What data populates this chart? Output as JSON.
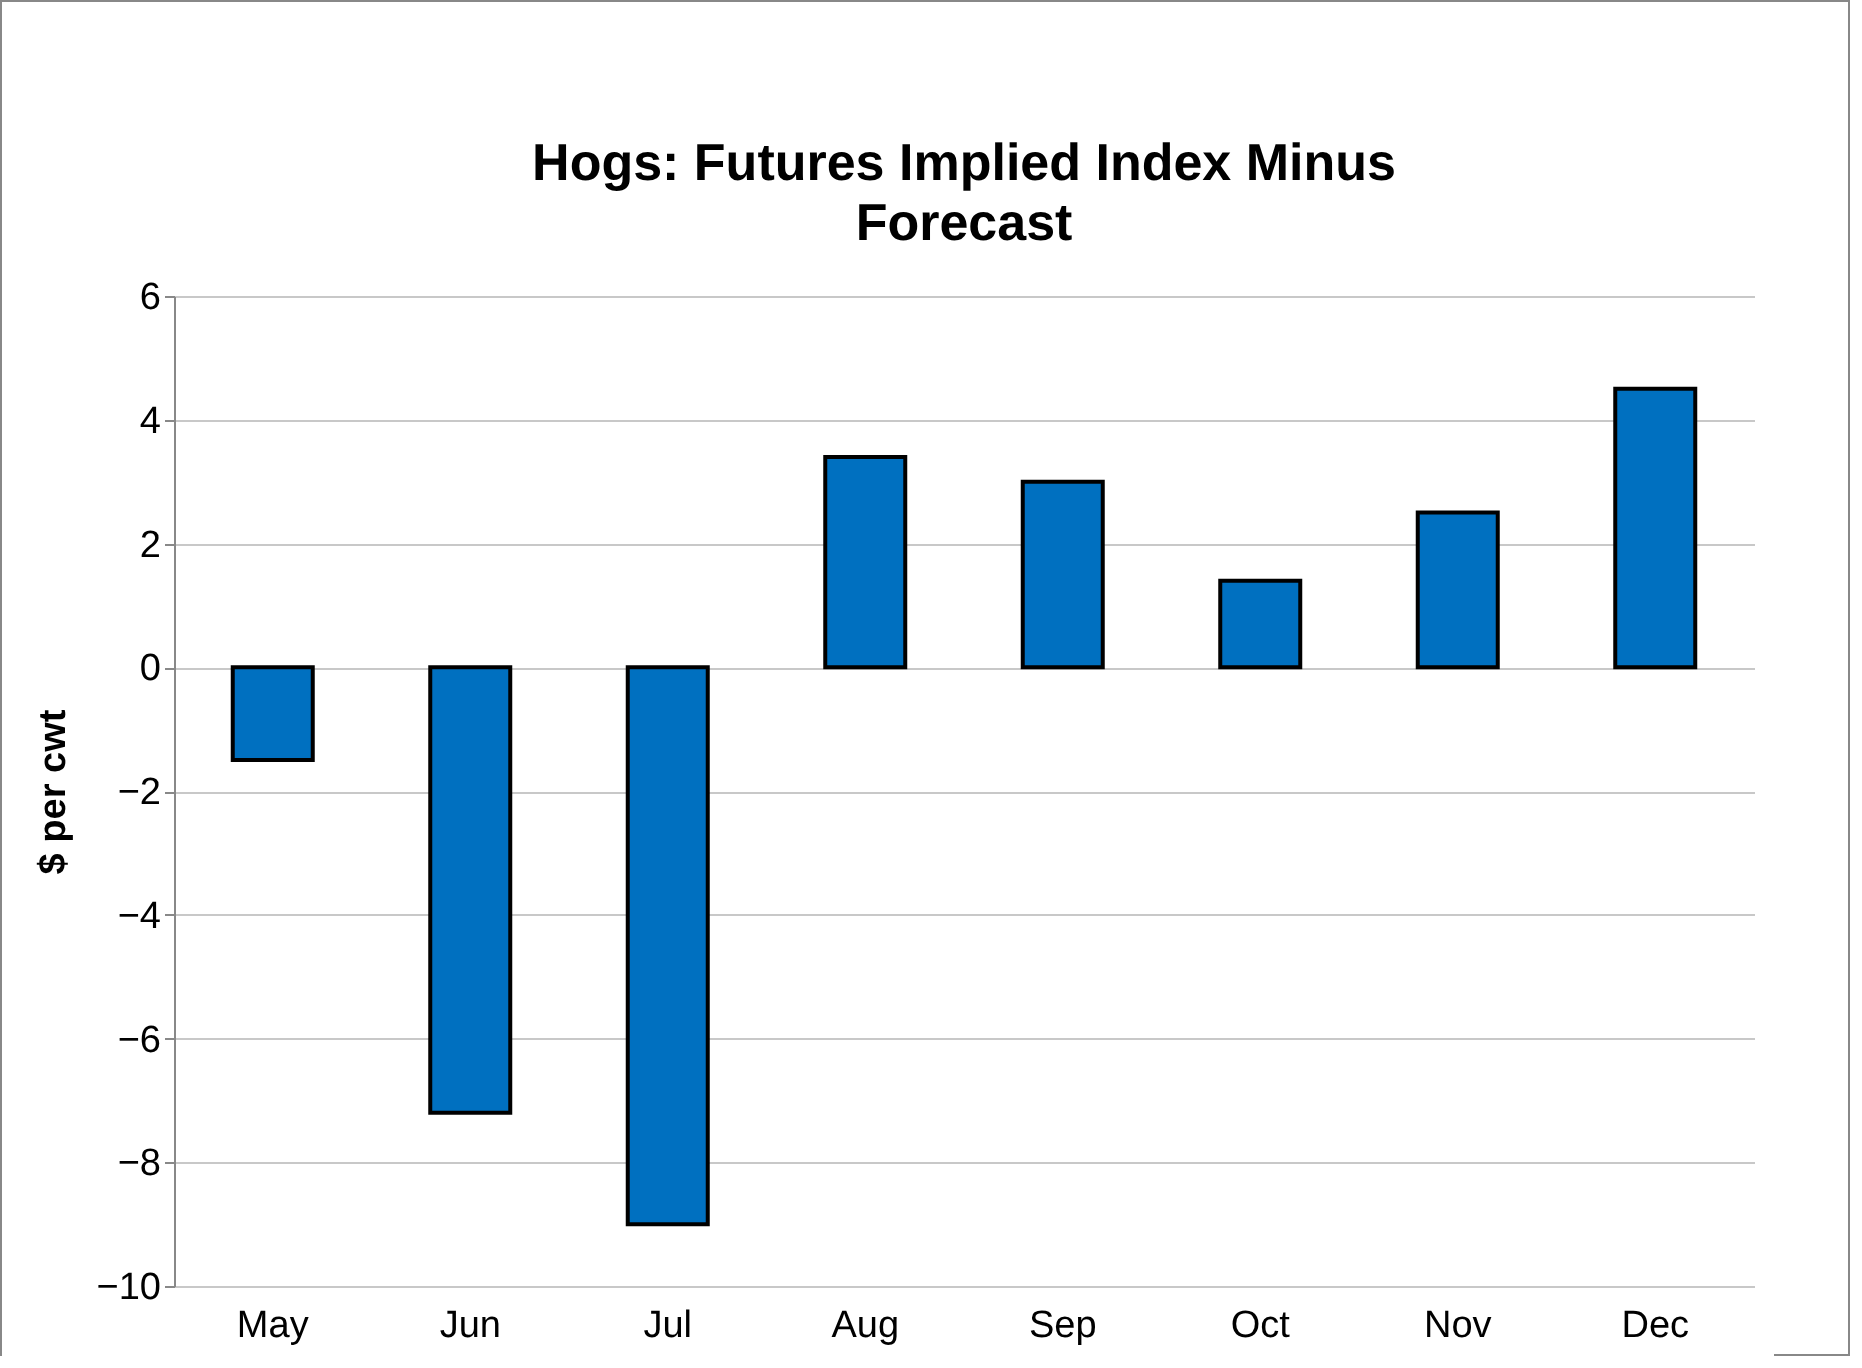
{
  "chart_data": {
    "type": "bar",
    "title": "Hogs: Futures Implied Index Minus Forecast",
    "ylabel": "$ per cwt",
    "categories": [
      "May",
      "Jun",
      "Jul",
      "Aug",
      "Sep",
      "Oct",
      "Nov",
      "Dec"
    ],
    "values": [
      -1.5,
      -7.2,
      -9.0,
      3.4,
      3.0,
      1.4,
      2.5,
      4.5
    ],
    "color": "#0070c0",
    "ylim": [
      -10,
      6
    ],
    "yticks": [
      -10,
      -8,
      -6,
      -4,
      -2,
      0,
      2,
      4,
      6
    ],
    "grid": "y"
  }
}
